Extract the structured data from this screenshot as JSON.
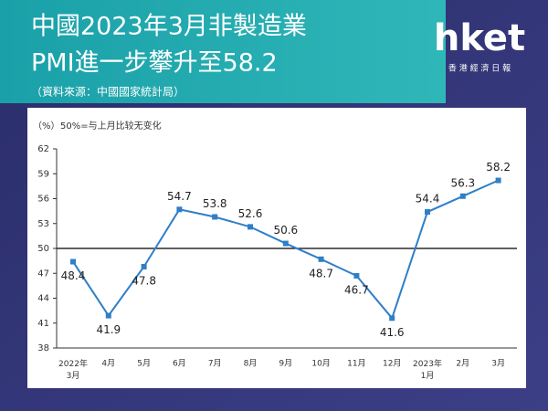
{
  "chart_data": {
    "type": "line",
    "title_lines": [
      "中國2023年3月非製造業",
      "PMI進一步攀升至58.2"
    ],
    "subtitle": "（資料來源：中國國家統計局）",
    "logo": "hket",
    "logo_subtitle": "香 港 經 濟 日 報",
    "y_label": "（%）",
    "note": "50%=与上月比较无变化",
    "categories": [
      "2022年\n3月",
      "4月",
      "5月",
      "6月",
      "7月",
      "8月",
      "9月",
      "10月",
      "11月",
      "12月",
      "2023年\n1月",
      "2月",
      "3月"
    ],
    "values": [
      48.4,
      41.9,
      47.8,
      54.7,
      53.8,
      52.6,
      50.6,
      48.7,
      46.7,
      41.6,
      54.4,
      56.3,
      58.2
    ],
    "color": "#2f7fc8",
    "ref_line": 50,
    "ylim": [
      38,
      62
    ],
    "yticks": [
      38,
      41,
      44,
      47,
      50,
      53,
      56,
      59,
      62
    ]
  }
}
